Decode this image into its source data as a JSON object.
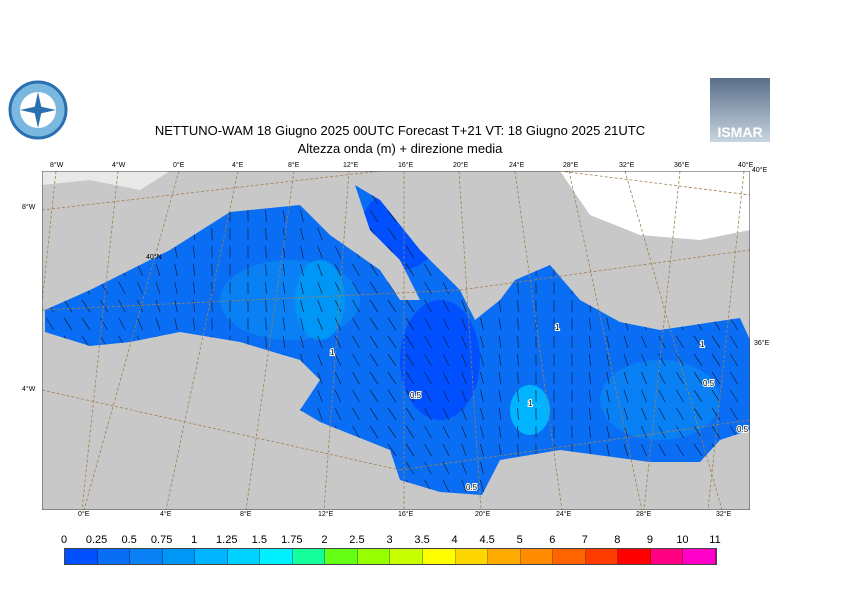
{
  "header": {
    "title_line1": "NETTUNO-WAM  18   Giugno  2025 00UTC Forecast T+21 VT: 18   Giugno  2025 21UTC",
    "title_line2": "Altezza onda (m) + direzione media",
    "logo_right_text": "ISMAR"
  },
  "map": {
    "top_lon_labels": [
      "8°W",
      "4°W",
      "0°E",
      "4°E",
      "8°E",
      "12°E",
      "16°E",
      "20°E",
      "24°E",
      "28°E",
      "32°E",
      "36°E",
      "40°E"
    ],
    "bottom_lon_labels": [
      "0°E",
      "4°E",
      "8°E",
      "12°E",
      "16°E",
      "20°E",
      "24°E",
      "28°E",
      "32°E"
    ],
    "left_labels": [
      "8°W",
      "40°N",
      "4°W"
    ],
    "right_labels": [
      "40°E",
      "36°E"
    ],
    "contour_labels": [
      "1",
      "0.5",
      "1",
      "1",
      "0.5",
      "0.5",
      "0.5",
      "1"
    ],
    "colors": {
      "land": "#c8c8c8",
      "outside": "#ffffff",
      "grid": "#a08050",
      "sea_low": "#0050ff",
      "sea_mid": "#0a80f5",
      "sea_high": "#00b4ff"
    }
  },
  "colorbar": {
    "labels": [
      "0",
      "0.25",
      "0.5",
      "0.75",
      "1",
      "1.25",
      "1.5",
      "1.75",
      "2",
      "2.5",
      "3",
      "3.5",
      "4",
      "4.5",
      "5",
      "6",
      "7",
      "8",
      "9",
      "10",
      "11"
    ],
    "colors": [
      "#0050ff",
      "#0a6ef5",
      "#0a80f5",
      "#0096f5",
      "#00b4ff",
      "#00d2ff",
      "#00f0ff",
      "#14ff9b",
      "#64ff14",
      "#96ff00",
      "#c8ff00",
      "#ffff00",
      "#ffd700",
      "#ffaa00",
      "#ff8c00",
      "#ff6400",
      "#ff3c00",
      "#ff0000",
      "#ff0082",
      "#ff00c8"
    ]
  }
}
